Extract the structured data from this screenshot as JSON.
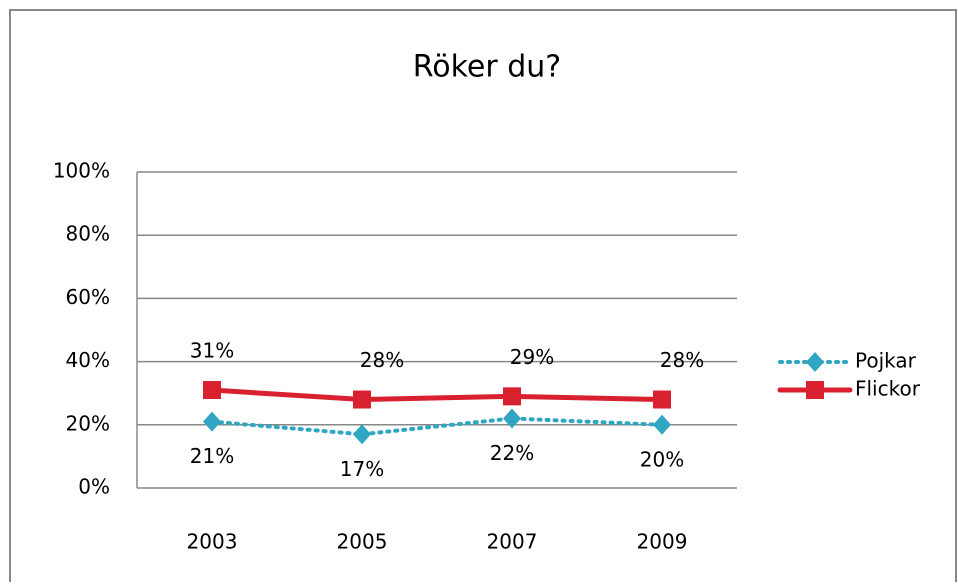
{
  "chart_data": {
    "type": "line",
    "title": "Röker du?",
    "categories": [
      "2003",
      "2005",
      "2007",
      "2009"
    ],
    "series": [
      {
        "name": "Pojkar",
        "color": "#31a6c2",
        "line_style": "dotted",
        "marker": "diamond",
        "values": [
          21,
          17,
          22,
          20
        ],
        "value_labels": [
          "21%",
          "17%",
          "22%",
          "20%"
        ]
      },
      {
        "name": "Flickor",
        "color": "#d9202f",
        "line_style": "solid",
        "marker": "square",
        "values": [
          31,
          28,
          29,
          28
        ],
        "value_labels": [
          "31%",
          "28%",
          "29%",
          "28%"
        ]
      }
    ],
    "ylim": [
      0,
      100
    ],
    "yticks": [
      {
        "value": 0,
        "label": "0%"
      },
      {
        "value": 20,
        "label": "20%"
      },
      {
        "value": 40,
        "label": "40%"
      },
      {
        "value": 60,
        "label": "60%"
      },
      {
        "value": 80,
        "label": "80%"
      },
      {
        "value": 100,
        "label": "100%"
      }
    ],
    "grid": true,
    "legend": "right"
  }
}
